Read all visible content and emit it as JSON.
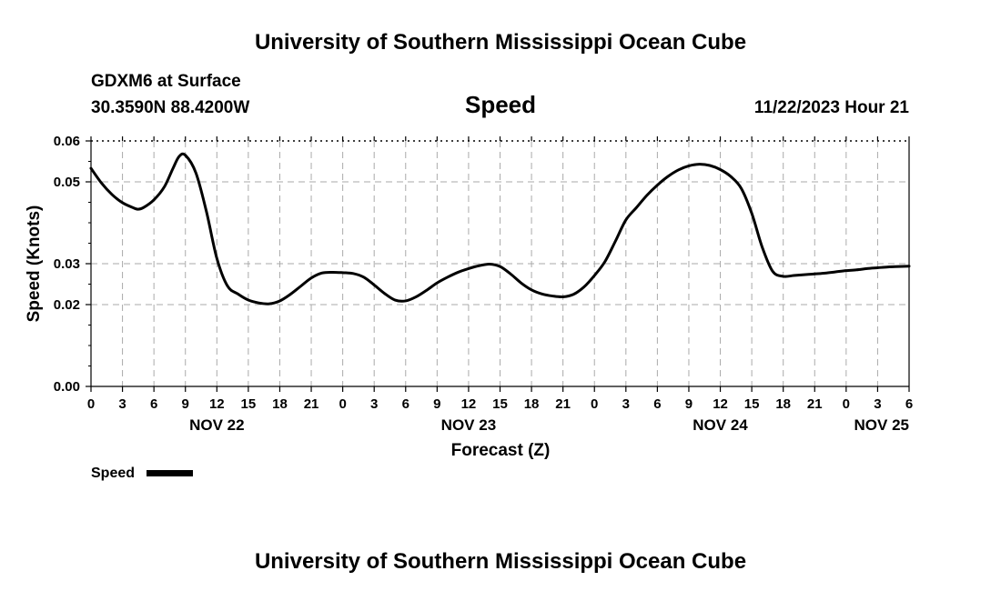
{
  "header": {
    "title": "University of Southern Mississippi Ocean Cube",
    "station": "GDXM6 at Surface",
    "coords": "30.3590N  88.4200W",
    "variable": "Speed",
    "datetime": "11/22/2023 Hour 21"
  },
  "footer": {
    "title": "University of Southern Mississippi Ocean Cube"
  },
  "legend": {
    "label": "Speed"
  },
  "colors": {
    "line": "#000000",
    "grid": "#aaaaaa",
    "frame": "#000000"
  },
  "chart_data": {
    "type": "line",
    "title": "Speed",
    "xlabel": "Forecast (Z)",
    "ylabel": "Speed (Knots)",
    "xlim": [
      0,
      78
    ],
    "ylim": [
      0.0,
      0.06
    ],
    "grid": true,
    "legend_position": "bottom-left",
    "x_tick_values": [
      0,
      3,
      6,
      9,
      12,
      15,
      18,
      21,
      24,
      27,
      30,
      33,
      36,
      39,
      42,
      45,
      48,
      51,
      54,
      57,
      60,
      63,
      66,
      69,
      72,
      75,
      78
    ],
    "x_tick_labels": [
      "0",
      "3",
      "6",
      "9",
      "12",
      "15",
      "18",
      "21",
      "0",
      "3",
      "6",
      "9",
      "12",
      "15",
      "18",
      "21",
      "0",
      "3",
      "6",
      "9",
      "12",
      "15",
      "18",
      "21",
      "0",
      "3",
      "6"
    ],
    "y_tick_values": [
      0.0,
      0.02,
      0.03,
      0.05,
      0.06
    ],
    "y_tick_labels": [
      "0.00",
      "0.02",
      "0.03",
      "0.05",
      "0.06"
    ],
    "date_labels": [
      {
        "x": 12,
        "label": "NOV 22"
      },
      {
        "x": 36,
        "label": "NOV 23"
      },
      {
        "x": 60,
        "label": "NOV 24"
      },
      {
        "x": 78,
        "label": "NOV 25"
      }
    ],
    "series": [
      {
        "name": "Speed",
        "x": [
          0,
          1,
          2,
          3,
          4,
          4.5,
          5,
          6,
          7,
          7.8,
          8.4,
          9,
          10,
          11,
          12,
          13,
          14,
          15,
          16,
          17,
          18,
          19,
          20,
          21,
          22,
          23,
          24,
          25,
          26,
          27,
          28,
          29,
          30,
          31,
          32,
          33,
          34,
          35,
          36,
          37,
          38,
          39,
          40,
          41,
          42,
          43,
          44,
          45,
          46,
          47,
          48,
          49,
          50,
          51,
          52,
          53,
          54,
          55,
          56,
          57,
          58,
          59,
          60,
          61,
          62,
          63,
          64,
          65,
          66,
          67,
          68,
          69,
          70,
          71,
          72,
          73,
          74,
          75,
          76,
          77,
          78
        ],
        "values": [
          0.0533,
          0.0497,
          0.0469,
          0.0449,
          0.0437,
          0.0433,
          0.0437,
          0.0456,
          0.0488,
          0.0532,
          0.0562,
          0.0565,
          0.0522,
          0.0428,
          0.0313,
          0.0246,
          0.0226,
          0.0211,
          0.0204,
          0.0202,
          0.0209,
          0.0225,
          0.0245,
          0.0265,
          0.0277,
          0.0279,
          0.0278,
          0.0276,
          0.0267,
          0.0248,
          0.0227,
          0.0211,
          0.0209,
          0.0219,
          0.0235,
          0.0253,
          0.0267,
          0.0279,
          0.0288,
          0.0295,
          0.0299,
          0.0293,
          0.0275,
          0.0253,
          0.0236,
          0.0226,
          0.0221,
          0.0219,
          0.0225,
          0.0243,
          0.0271,
          0.0305,
          0.0355,
          0.0407,
          0.0437,
          0.0467,
          0.0492,
          0.0513,
          0.0529,
          0.0539,
          0.0543,
          0.054,
          0.053,
          0.0513,
          0.0484,
          0.0423,
          0.034,
          0.0281,
          0.0269,
          0.0271,
          0.0273,
          0.0275,
          0.0277,
          0.028,
          0.0283,
          0.0285,
          0.0288,
          0.029,
          0.0292,
          0.0293,
          0.0294
        ]
      }
    ]
  }
}
